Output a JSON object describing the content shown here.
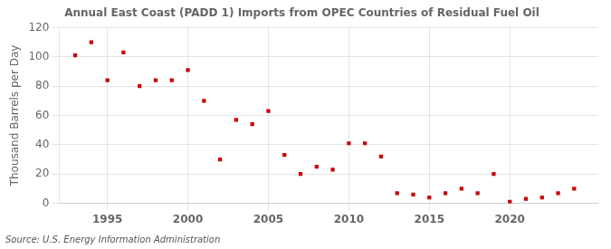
{
  "chart_data": {
    "type": "scatter",
    "title": "Annual East Coast (PADD 1) Imports from OPEC Countries of Residual Fuel Oil",
    "ylabel": "Thousand Barrels per Day",
    "source": "Source: U.S. Energy Information Administration",
    "x": [
      1993,
      1994,
      1995,
      1996,
      1997,
      1998,
      1999,
      2000,
      2001,
      2002,
      2003,
      2004,
      2005,
      2006,
      2007,
      2008,
      2009,
      2010,
      2011,
      2012,
      2013,
      2014,
      2015,
      2016,
      2017,
      2018,
      2019,
      2020,
      2021,
      2022,
      2023,
      2024
    ],
    "values": [
      101,
      110,
      84,
      103,
      80,
      84,
      84,
      91,
      70,
      30,
      57,
      54,
      63,
      33,
      20,
      25,
      23,
      41,
      41,
      32,
      7,
      6,
      4,
      7,
      10,
      7,
      20,
      1,
      3,
      4,
      7,
      10
    ],
    "color": "#cc0000",
    "marker": "square",
    "xlim": [
      1992,
      2025.5
    ],
    "xticks": [
      1995,
      2000,
      2005,
      2010,
      2015,
      2020
    ],
    "ylim": [
      0,
      120
    ],
    "yticks": [
      0,
      20,
      40,
      60,
      80,
      100,
      120
    ],
    "grid": true
  }
}
